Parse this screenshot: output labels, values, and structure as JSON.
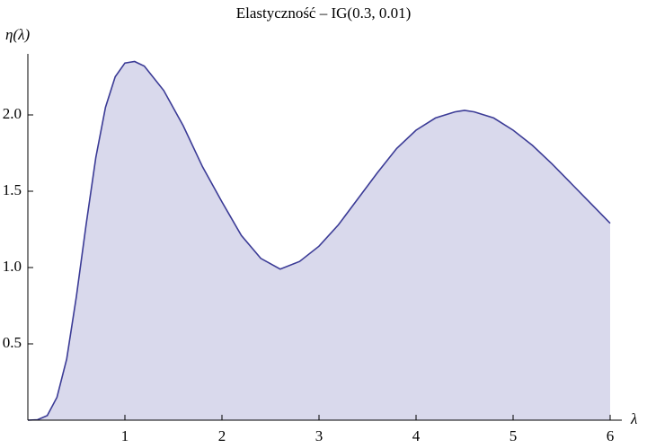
{
  "chart_data": {
    "type": "area",
    "title": "Elastyczność – IG(0.3, 0.01)",
    "x_label": "λ",
    "y_label": "η(λ)",
    "x": [
      0,
      0.1,
      0.2,
      0.3,
      0.4,
      0.5,
      0.6,
      0.7,
      0.8,
      0.9,
      1.0,
      1.1,
      1.2,
      1.4,
      1.6,
      1.8,
      2.0,
      2.2,
      2.4,
      2.6,
      2.8,
      3.0,
      3.2,
      3.4,
      3.6,
      3.8,
      4.0,
      4.2,
      4.4,
      4.5,
      4.6,
      4.8,
      5.0,
      5.2,
      5.4,
      5.6,
      5.8,
      6.0
    ],
    "series": [
      {
        "color": "#3b3b96",
        "fill": "#d9d9ec",
        "values": [
          0,
          0.003,
          0.03,
          0.15,
          0.4,
          0.81,
          1.28,
          1.72,
          2.05,
          2.25,
          2.34,
          2.35,
          2.32,
          2.16,
          1.93,
          1.66,
          1.43,
          1.21,
          1.06,
          0.99,
          1.04,
          1.14,
          1.28,
          1.45,
          1.62,
          1.78,
          1.9,
          1.98,
          2.02,
          2.03,
          2.02,
          1.98,
          1.9,
          1.8,
          1.68,
          1.55,
          1.42,
          1.29
        ]
      }
    ],
    "xlim": [
      0,
      6
    ],
    "ylim": [
      0,
      2.4
    ],
    "xticks": [
      1,
      2,
      3,
      4,
      5,
      6
    ],
    "yticks": [
      0.5,
      {
        "value": 1,
        "label": "1.0"
      },
      1.5,
      {
        "value": 2,
        "label": "2.0"
      }
    ]
  }
}
